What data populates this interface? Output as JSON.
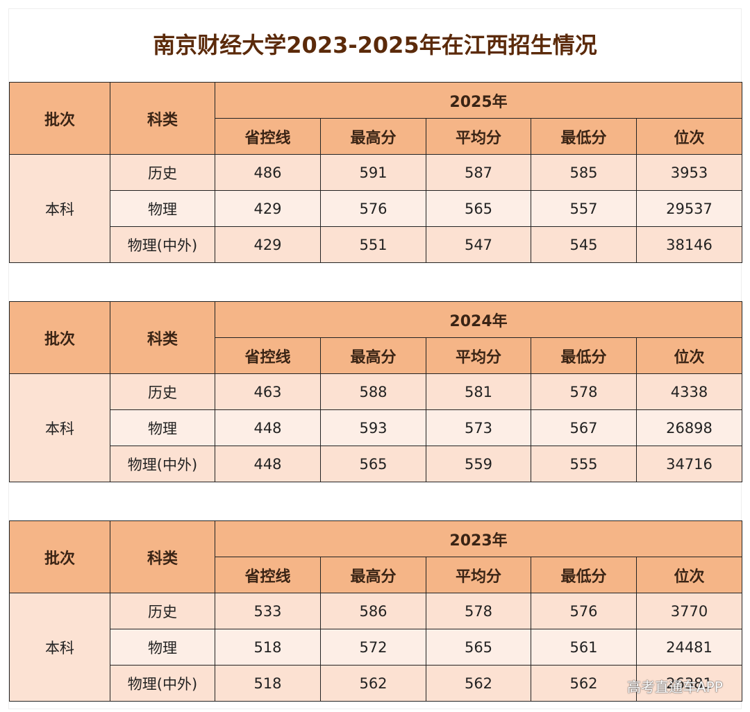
{
  "title": "南京财经大学2023-2025年在江西招生情况",
  "tables": [
    {
      "year": "2025年",
      "batch_header": "批次",
      "subject_header": "科类",
      "columns": [
        "省控线",
        "最高分",
        "平均分",
        "最低分",
        "位次"
      ],
      "batch": "本科",
      "rows": [
        {
          "subject": "历史",
          "values": [
            486,
            591,
            587,
            585,
            3953
          ]
        },
        {
          "subject": "物理",
          "values": [
            429,
            576,
            565,
            557,
            29537
          ]
        },
        {
          "subject": "物理(中外)",
          "values": [
            429,
            551,
            547,
            545,
            38146
          ]
        }
      ]
    },
    {
      "year": "2024年",
      "batch_header": "批次",
      "subject_header": "科类",
      "columns": [
        "省控线",
        "最高分",
        "平均分",
        "最低分",
        "位次"
      ],
      "batch": "本科",
      "rows": [
        {
          "subject": "历史",
          "values": [
            463,
            588,
            581,
            578,
            4338
          ]
        },
        {
          "subject": "物理",
          "values": [
            448,
            593,
            573,
            567,
            26898
          ]
        },
        {
          "subject": "物理(中外)",
          "values": [
            448,
            565,
            559,
            555,
            34716
          ]
        }
      ]
    },
    {
      "year": "2023年",
      "batch_header": "批次",
      "subject_header": "科类",
      "columns": [
        "省控线",
        "最高分",
        "平均分",
        "最低分",
        "位次"
      ],
      "batch": "本科",
      "rows": [
        {
          "subject": "历史",
          "values": [
            533,
            586,
            578,
            576,
            3770
          ]
        },
        {
          "subject": "物理",
          "values": [
            518,
            572,
            565,
            561,
            24481
          ]
        },
        {
          "subject": "物理(中外)",
          "values": [
            518,
            562,
            562,
            562,
            26381
          ]
        }
      ]
    }
  ],
  "watermark": "高考直通车APP"
}
